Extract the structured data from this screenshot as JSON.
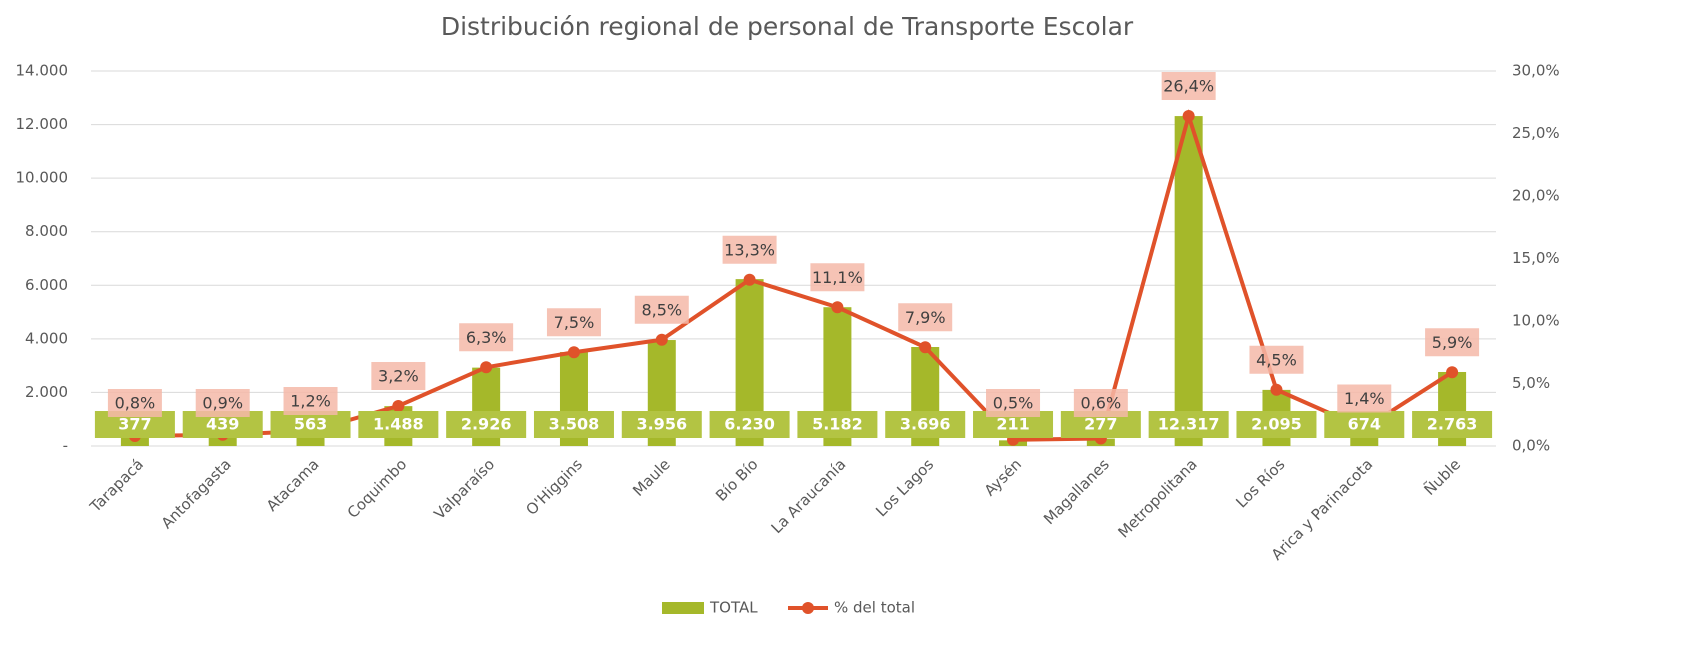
{
  "chart_data": {
    "type": "bar",
    "title": "Distribución regional de personal de Transporte Escolar",
    "categories": [
      "Tarapacá",
      "Antofagasta",
      "Atacama",
      "Coquimbo",
      "Valparaíso",
      "O'Higgins",
      "Maule",
      "Bío Bío",
      "La Araucanía",
      "Los Lagos",
      "Aysén",
      "Magallanes",
      "Metropolitana",
      "Los Ríos",
      "Arica y Parinacota",
      "Ñuble"
    ],
    "series": [
      {
        "name": "TOTAL",
        "type": "bar",
        "color": "#a5b82a",
        "values": [
          377,
          439,
          563,
          1488,
          2926,
          3508,
          3956,
          6230,
          5182,
          3696,
          211,
          277,
          12317,
          2095,
          674,
          2763
        ],
        "value_labels": [
          "377",
          "439",
          "563",
          "1.488",
          "2.926",
          "3.508",
          "3.956",
          "6.230",
          "5.182",
          "3.696",
          "211",
          "277",
          "12.317",
          "2.095",
          "674",
          "2.763"
        ]
      },
      {
        "name": "% del total",
        "type": "line",
        "axis": "y2",
        "color": "#e0522a",
        "values": [
          0.8,
          0.9,
          1.2,
          3.2,
          6.3,
          7.5,
          8.5,
          13.3,
          11.1,
          7.9,
          0.5,
          0.6,
          26.4,
          4.5,
          1.4,
          5.9
        ],
        "value_labels": [
          "0,8%",
          "0,9%",
          "1,2%",
          "3,2%",
          "6,3%",
          "7,5%",
          "8,5%",
          "13,3%",
          "11,1%",
          "7,9%",
          "0,5%",
          "0,6%",
          "26,4%",
          "4,5%",
          "1,4%",
          "5,9%"
        ]
      }
    ],
    "ylim": [
      0,
      14000
    ],
    "yticks": [
      {
        "value": 0,
        "label": "-"
      },
      {
        "value": 2000,
        "label": "2.000"
      },
      {
        "value": 4000,
        "label": "4.000"
      },
      {
        "value": 6000,
        "label": "6.000"
      },
      {
        "value": 8000,
        "label": "8.000"
      },
      {
        "value": 10000,
        "label": "10.000"
      },
      {
        "value": 12000,
        "label": "12.000"
      },
      {
        "value": 14000,
        "label": "14.000"
      }
    ],
    "y2lim": [
      0,
      30
    ],
    "y2ticks": [
      {
        "value": 0,
        "label": "0,0%"
      },
      {
        "value": 5,
        "label": "5,0%"
      },
      {
        "value": 10,
        "label": "10,0%"
      },
      {
        "value": 15,
        "label": "15,0%"
      },
      {
        "value": 20,
        "label": "20,0%"
      },
      {
        "value": 25,
        "label": "25,0%"
      },
      {
        "value": 30,
        "label": "30,0%"
      }
    ],
    "grid": true,
    "legend": "bottom"
  }
}
